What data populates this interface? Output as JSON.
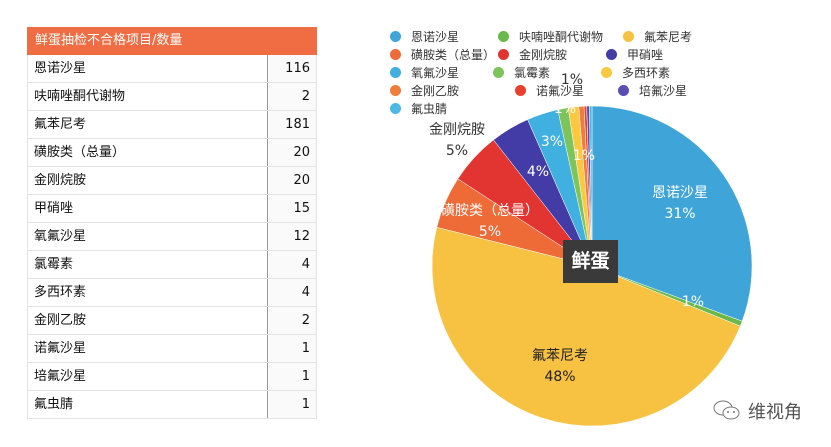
{
  "table": {
    "header": "鲜蛋抽检不合格项目/数量",
    "rows": [
      {
        "name": "恩诺沙星",
        "value": "116"
      },
      {
        "name": "呋喃唑酮代谢物",
        "value": "2"
      },
      {
        "name": "氟苯尼考",
        "value": "181"
      },
      {
        "name": "磺胺类（总量）",
        "value": "20"
      },
      {
        "name": "金刚烷胺",
        "value": "20"
      },
      {
        "name": "甲硝唑",
        "value": "15"
      },
      {
        "name": "氧氟沙星",
        "value": "12"
      },
      {
        "name": "氯霉素",
        "value": "4"
      },
      {
        "name": "多西环素",
        "value": "4"
      },
      {
        "name": "金刚乙胺",
        "value": "2"
      },
      {
        "name": "诺氟沙星",
        "value": "1"
      },
      {
        "name": "培氟沙星",
        "value": "1"
      },
      {
        "name": "氟虫腈",
        "value": "1"
      }
    ]
  },
  "chart_data": {
    "type": "pie",
    "center_label": "鲜蛋",
    "legend_position": "top",
    "categories": [
      "恩诺沙星",
      "呋喃唑酮代谢物",
      "氟苯尼考",
      "磺胺类（总量）",
      "金刚烷胺",
      "甲硝唑",
      "氧氟沙星",
      "氯霉素",
      "多西环素",
      "金刚乙胺",
      "诺氟沙星",
      "培氟沙星",
      "氟虫腈"
    ],
    "values": [
      116,
      2,
      181,
      20,
      20,
      15,
      12,
      4,
      4,
      2,
      1,
      1,
      1
    ],
    "colors": [
      "#3fa4d8",
      "#6ab84a",
      "#f7c142",
      "#ee6a36",
      "#e23531",
      "#433ca6",
      "#40b0e0",
      "#7dc45a",
      "#fbc840",
      "#f07d3a",
      "#e8402f",
      "#5a4db3",
      "#4bb8e6"
    ],
    "data_labels": [
      {
        "text": "恩诺沙星",
        "pct": "31%"
      },
      {
        "text": "",
        "pct": "1%"
      },
      {
        "text": "氟苯尼考",
        "pct": "48%"
      },
      {
        "text": "磺胺类（总量）",
        "pct": "5%"
      },
      {
        "text": "金刚烷胺",
        "pct": "5%"
      },
      {
        "text": "",
        "pct": "4%"
      },
      {
        "text": "",
        "pct": "3%"
      },
      {
        "text": "",
        "pct": "1%"
      },
      {
        "text": "",
        "pct": "1%"
      },
      {
        "text": "",
        "pct": "1%"
      }
    ]
  },
  "watermark": "维视角"
}
